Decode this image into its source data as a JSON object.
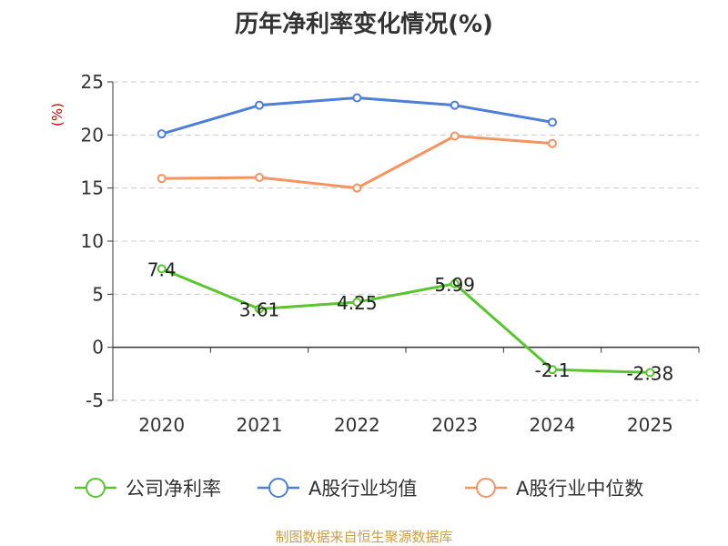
{
  "chart_data": {
    "type": "line",
    "title": "历年净利率变化情况(%)",
    "ylabel": "(%)",
    "xlabel": "",
    "categories": [
      "2020",
      "2021",
      "2022",
      "2023",
      "2024",
      "2025"
    ],
    "ylim": [
      -5,
      25
    ],
    "yticks": [
      "25",
      "20",
      "15",
      "10",
      "5",
      "0",
      "-5"
    ],
    "grid": true,
    "legend_position": "bottom",
    "series": [
      {
        "name": "公司净利率",
        "color": "#5ac52e",
        "values": [
          7.4,
          3.61,
          4.25,
          5.99,
          -2.1,
          -2.38
        ],
        "labels": [
          "7.4",
          "3.61",
          "4.25",
          "5.99",
          "-2.1",
          "-2.38"
        ]
      },
      {
        "name": "A股行业均值",
        "color": "#4d7fd9",
        "values": [
          20.1,
          22.8,
          23.5,
          22.8,
          21.2,
          null
        ]
      },
      {
        "name": "A股行业中位数",
        "color": "#f59461",
        "values": [
          15.9,
          16.0,
          15.0,
          19.9,
          19.2,
          null
        ]
      }
    ]
  },
  "source": "制图数据来自恒生聚源数据库"
}
